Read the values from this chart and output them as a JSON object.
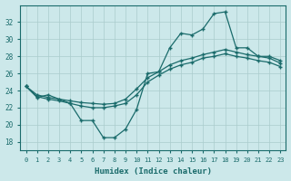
{
  "background_color": "#cce8ea",
  "line_color": "#1a6b6b",
  "grid_color": "#aacccc",
  "xlabel": "Humidex (Indice chaleur)",
  "xlim": [
    -0.5,
    23.5
  ],
  "ylim": [
    17,
    34
  ],
  "yticks": [
    18,
    20,
    22,
    24,
    26,
    28,
    30,
    32
  ],
  "xticks": [
    0,
    1,
    2,
    3,
    4,
    5,
    6,
    7,
    8,
    9,
    10,
    11,
    12,
    13,
    14,
    15,
    16,
    17,
    18,
    19,
    20,
    21,
    22,
    23
  ],
  "hours": [
    0,
    1,
    2,
    3,
    4,
    5,
    6,
    7,
    8,
    9,
    10,
    11,
    12,
    13,
    14,
    15,
    16,
    17,
    18,
    19,
    20,
    21,
    22,
    23
  ],
  "y_main": [
    24.5,
    23.2,
    23.5,
    23.0,
    22.5,
    20.5,
    20.5,
    18.5,
    18.5,
    19.5,
    21.8,
    26.0,
    26.2,
    29.0,
    30.7,
    30.5,
    31.2,
    33.0,
    33.2,
    29.0,
    29.0,
    28.0,
    28.0,
    27.5
  ],
  "y_upper": [
    24.5,
    23.5,
    23.2,
    23.0,
    22.8,
    22.6,
    22.5,
    22.4,
    22.5,
    23.0,
    24.2,
    25.5,
    26.2,
    27.0,
    27.5,
    27.8,
    28.2,
    28.5,
    28.8,
    28.5,
    28.2,
    28.0,
    27.8,
    27.2
  ],
  "y_lower": [
    24.5,
    23.3,
    23.0,
    22.8,
    22.5,
    22.2,
    22.0,
    22.0,
    22.2,
    22.5,
    23.5,
    25.0,
    25.8,
    26.5,
    27.0,
    27.3,
    27.8,
    28.0,
    28.3,
    28.0,
    27.8,
    27.5,
    27.3,
    26.8
  ]
}
